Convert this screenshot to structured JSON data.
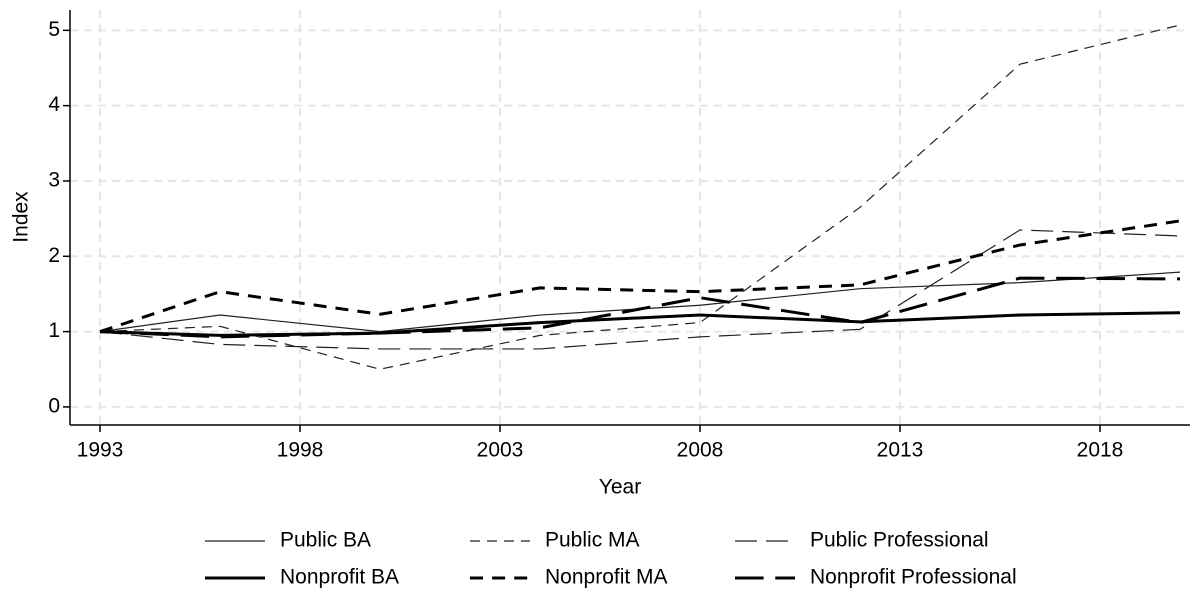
{
  "chart_data": {
    "type": "line",
    "xlabel": "Year",
    "ylabel": "Index",
    "x": [
      1993,
      1996,
      2000,
      2004,
      2008,
      2012,
      2016,
      2020
    ],
    "xlim": [
      1992.25,
      2020.25
    ],
    "xticks": [
      1993,
      1998,
      2003,
      2008,
      2013,
      2018
    ],
    "ylim": [
      -0.24,
      5.27
    ],
    "yticks": [
      0,
      1,
      2,
      3,
      4,
      5
    ],
    "grid": true,
    "legend": "bottom",
    "series": [
      {
        "name": "Public BA",
        "color": "#222222",
        "width": 1.2,
        "dash": "solid",
        "values": [
          1,
          1.22,
          1.0,
          1.22,
          1.35,
          1.57,
          1.65,
          1.79
        ]
      },
      {
        "name": "Public MA",
        "color": "#222222",
        "width": 1.2,
        "dash": "dashed",
        "values": [
          1,
          1.07,
          0.5,
          0.95,
          1.12,
          2.65,
          4.55,
          5.07
        ]
      },
      {
        "name": "Public Professional",
        "color": "#222222",
        "width": 1.2,
        "dash": "longdash",
        "values": [
          1,
          0.83,
          0.77,
          0.77,
          0.93,
          1.03,
          2.35,
          2.27
        ]
      },
      {
        "name": "Nonprofit BA",
        "color": "#000000",
        "width": 3,
        "dash": "solid",
        "values": [
          1,
          0.95,
          0.98,
          1.12,
          1.22,
          1.13,
          1.22,
          1.25
        ]
      },
      {
        "name": "Nonprofit MA",
        "color": "#000000",
        "width": 3,
        "dash": "dashed",
        "values": [
          1,
          1.53,
          1.23,
          1.58,
          1.53,
          1.62,
          2.15,
          2.47
        ]
      },
      {
        "name": "Nonprofit Professional",
        "color": "#000000",
        "width": 3,
        "dash": "longdash",
        "values": [
          1,
          0.93,
          0.98,
          1.05,
          1.45,
          1.12,
          1.71,
          1.7
        ]
      }
    ]
  }
}
